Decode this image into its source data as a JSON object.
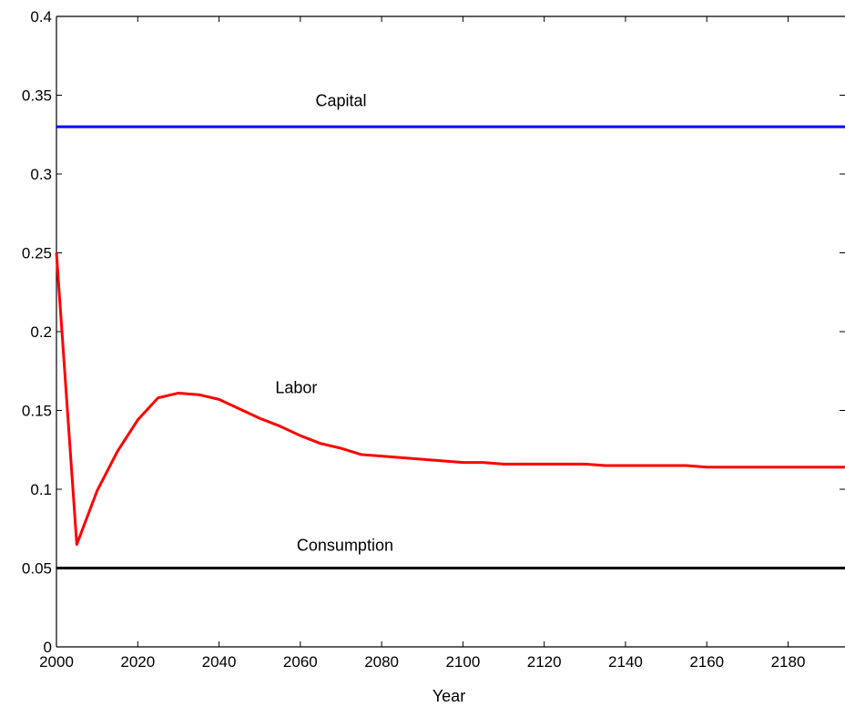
{
  "chart_data": {
    "type": "line",
    "title": "",
    "xlabel": "Year",
    "ylabel": "",
    "xlim": [
      2000,
      2194
    ],
    "ylim": [
      0,
      0.4
    ],
    "xticks": [
      2000,
      2020,
      2040,
      2060,
      2080,
      2100,
      2120,
      2140,
      2160,
      2180
    ],
    "yticks": [
      0,
      0.05,
      0.1,
      0.15,
      0.2,
      0.25,
      0.3,
      0.35,
      0.4
    ],
    "grid": false,
    "legend": "none",
    "series": [
      {
        "name": "Capital",
        "color": "#0000ff",
        "x": [
          2000,
          2194
        ],
        "y": [
          0.33,
          0.33
        ]
      },
      {
        "name": "Labor",
        "color": "#ff0000",
        "x": [
          2000,
          2005,
          2010,
          2015,
          2020,
          2025,
          2030,
          2035,
          2040,
          2045,
          2050,
          2055,
          2060,
          2065,
          2070,
          2075,
          2080,
          2085,
          2090,
          2095,
          2100,
          2105,
          2110,
          2115,
          2120,
          2125,
          2130,
          2135,
          2140,
          2145,
          2150,
          2155,
          2160,
          2165,
          2170,
          2175,
          2180,
          2185,
          2190,
          2194
        ],
        "y": [
          0.25,
          0.065,
          0.099,
          0.124,
          0.144,
          0.158,
          0.161,
          0.16,
          0.157,
          0.151,
          0.145,
          0.14,
          0.134,
          0.129,
          0.126,
          0.122,
          0.121,
          0.12,
          0.119,
          0.118,
          0.117,
          0.117,
          0.116,
          0.116,
          0.116,
          0.116,
          0.116,
          0.115,
          0.115,
          0.115,
          0.115,
          0.115,
          0.114,
          0.114,
          0.114,
          0.114,
          0.114,
          0.114,
          0.114,
          0.114
        ]
      },
      {
        "name": "Consumption",
        "color": "#000000",
        "x": [
          2000,
          2194
        ],
        "y": [
          0.05,
          0.05
        ]
      }
    ],
    "annotations": [
      {
        "text": "Capital",
        "x": 2070,
        "y": 0.343
      },
      {
        "text": "Labor",
        "x": 2059,
        "y": 0.161
      },
      {
        "text": "Consumption",
        "x": 2071,
        "y": 0.061
      }
    ]
  }
}
